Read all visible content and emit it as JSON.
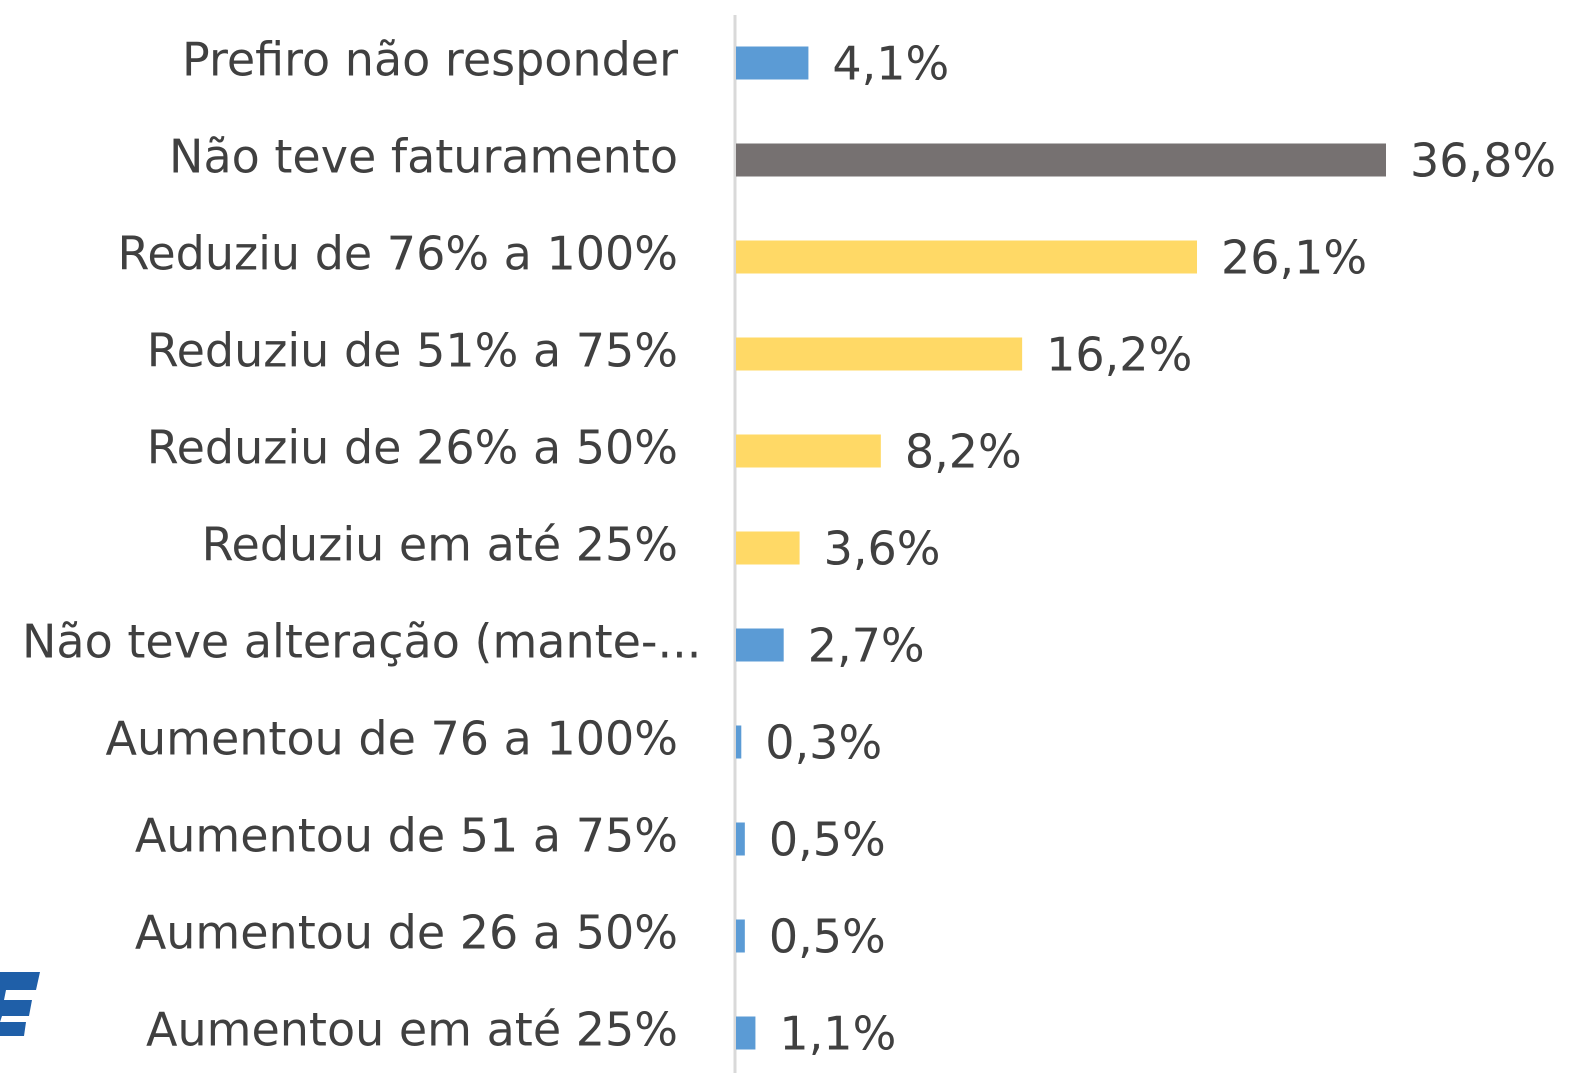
{
  "chart_data": {
    "type": "bar",
    "orientation": "horizontal",
    "categories": [
      "Prefiro não responder",
      "Não teve faturamento",
      "Reduziu de 76% a 100%",
      "Reduziu de 51% a 75%",
      "Reduziu de 26% a 50%",
      "Reduziu em até 25%",
      "Não teve alteração (mante-...",
      "Aumentou de 76 a 100%",
      "Aumentou de 51 a 75%",
      "Aumentou de 26 a 50%",
      "Aumentou em até 25%"
    ],
    "values": [
      4.1,
      36.8,
      26.1,
      16.2,
      8.2,
      3.6,
      2.7,
      0.3,
      0.5,
      0.5,
      1.1
    ],
    "value_labels": [
      "4,1%",
      "36,8%",
      "26,1%",
      "16,2%",
      "8,2%",
      "3,6%",
      "2,7%",
      "0,3%",
      "0,5%",
      "0,5%",
      "1,1%"
    ],
    "colors": [
      "#5b9bd5",
      "#767171",
      "#ffd966",
      "#ffd966",
      "#ffd966",
      "#ffd966",
      "#5b9bd5",
      "#5b9bd5",
      "#5b9bd5",
      "#5b9bd5",
      "#5b9bd5"
    ]
  }
}
